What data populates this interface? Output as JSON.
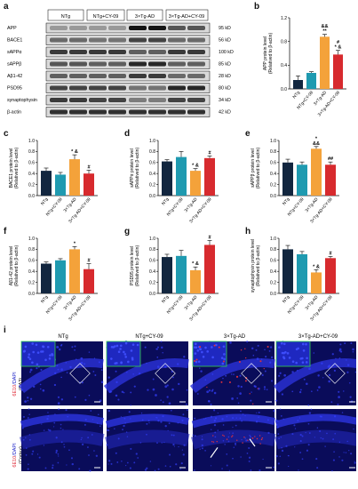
{
  "panels": {
    "a": "a",
    "b": "b",
    "c": "c",
    "d": "d",
    "e": "e",
    "f": "f",
    "g": "g",
    "h": "h",
    "i": "i"
  },
  "blot": {
    "groups": [
      "NTg",
      "NTg+CY-09",
      "3×Tg-AD",
      "3×Tg-AD+CY-09"
    ],
    "rows": [
      {
        "protein": "APP",
        "kd": "95 kD",
        "intensity": [
          0.25,
          0.25,
          0.95,
          0.6
        ]
      },
      {
        "protein": "BACE1",
        "kd": "56 kD",
        "intensity": [
          0.5,
          0.45,
          0.7,
          0.5
        ]
      },
      {
        "protein": "sAPPα",
        "kd": "100 kD",
        "intensity": [
          0.75,
          0.75,
          0.55,
          0.75
        ]
      },
      {
        "protein": "sAPPβ",
        "kd": "85 kD",
        "intensity": [
          0.6,
          0.55,
          0.85,
          0.55
        ]
      },
      {
        "protein": "Aβ1-42",
        "kd": "28 kD",
        "intensity": [
          0.55,
          0.55,
          0.75,
          0.5
        ]
      },
      {
        "protein": "PSD95",
        "kd": "80 kD",
        "intensity": [
          0.7,
          0.7,
          0.45,
          0.85
        ]
      },
      {
        "protein": "synaptophysin",
        "kd": "34 kD",
        "intensity": [
          0.75,
          0.7,
          0.4,
          0.7
        ]
      },
      {
        "protein": "β-actin",
        "kd": "42 kD",
        "intensity": [
          0.8,
          0.8,
          0.8,
          0.8
        ]
      }
    ]
  },
  "chart_data": [
    {
      "panel": "b",
      "type": "bar",
      "ylabel_line1": "APP protein level",
      "ylabel_line2": "(Relatived to β-actin)",
      "categories": [
        "NTg",
        "NTg+CY-09",
        "3×Tg-AD",
        "3×Tg-AD+CY-09"
      ],
      "values": [
        0.15,
        0.27,
        0.88,
        0.58
      ],
      "errors": [
        0.07,
        0.02,
        0.04,
        0.07
      ],
      "ylim": [
        0,
        1.2
      ],
      "yticks": [
        "0.0",
        "0.4",
        "0.8",
        "1.2"
      ],
      "ytick_values": [
        0,
        0.4,
        0.8,
        1.2
      ],
      "annotations": [
        "",
        "",
        "&&\n**",
        "#\n* &"
      ]
    },
    {
      "panel": "c",
      "type": "bar",
      "ylabel_line1": "BACE1 protein level",
      "ylabel_line2": "(Relatived to β-actin)",
      "categories": [
        "NTg",
        "NTg+CY-09",
        "3×Tg-AD",
        "3×Tg-AD+CY-09"
      ],
      "values": [
        0.45,
        0.38,
        0.66,
        0.4
      ],
      "errors": [
        0.05,
        0.04,
        0.08,
        0.06
      ],
      "ylim": [
        0,
        1.0
      ],
      "yticks": [
        "0.0",
        "0.2",
        "0.4",
        "0.6",
        "0.8",
        "1.0"
      ],
      "ytick_values": [
        0,
        0.2,
        0.4,
        0.6,
        0.8,
        1.0
      ],
      "annotations": [
        "",
        "",
        "* &",
        "#"
      ]
    },
    {
      "panel": "d",
      "type": "bar",
      "ylabel_line1": "sAPPα protein level",
      "ylabel_line2": "(Relatived to β-actin)",
      "categories": [
        "NTg",
        "NTg+CY-09",
        "3×Tg-AD",
        "3×Tg-AD+CY-09"
      ],
      "values": [
        0.62,
        0.7,
        0.45,
        0.68
      ],
      "errors": [
        0.03,
        0.1,
        0.04,
        0.04
      ],
      "ylim": [
        0,
        1.0
      ],
      "yticks": [
        "0.0",
        "0.2",
        "0.4",
        "0.6",
        "0.8",
        "1.0"
      ],
      "ytick_values": [
        0,
        0.2,
        0.4,
        0.6,
        0.8,
        1.0
      ],
      "annotations": [
        "",
        "",
        "* &",
        "#"
      ]
    },
    {
      "panel": "e",
      "type": "bar",
      "ylabel_line1": "sAPPβ protein level",
      "ylabel_line2": "(Relatived to β-actin)",
      "categories": [
        "NTg",
        "NTg+CY-09",
        "3×Tg-AD",
        "3×Tg-AD+CY-09"
      ],
      "values": [
        0.6,
        0.56,
        0.85,
        0.56
      ],
      "errors": [
        0.06,
        0.05,
        0.04,
        0.05
      ],
      "ylim": [
        0,
        1.0
      ],
      "yticks": [
        "0.0",
        "0.2",
        "0.4",
        "0.6",
        "0.8",
        "1.0"
      ],
      "ytick_values": [
        0,
        0.2,
        0.4,
        0.6,
        0.8,
        1.0
      ],
      "annotations": [
        "",
        "",
        "*\n&&",
        "##"
      ]
    },
    {
      "panel": "f",
      "type": "bar",
      "ylabel_line1": "Aβ1-42 protein level",
      "ylabel_line2": "(Relatived to β-actin)",
      "categories": [
        "NTg",
        "NTg+CY-09",
        "3×Tg-AD",
        "3×Tg-AD+CY-09"
      ],
      "values": [
        0.54,
        0.6,
        0.8,
        0.44
      ],
      "errors": [
        0.03,
        0.03,
        0.05,
        0.1
      ],
      "ylim": [
        0,
        1.0
      ],
      "yticks": [
        "0.0",
        "0.2",
        "0.4",
        "0.6",
        "0.8",
        "1.0"
      ],
      "ytick_values": [
        0,
        0.2,
        0.4,
        0.6,
        0.8,
        1.0
      ],
      "annotations": [
        "",
        "",
        "*",
        "#"
      ]
    },
    {
      "panel": "g",
      "type": "bar",
      "ylabel_line1": "PSD95 protein level",
      "ylabel_line2": "(Relatived to β-actin)",
      "categories": [
        "NTg",
        "NTg+CY-09",
        "3×Tg-AD",
        "3×Tg-AD+CY-09"
      ],
      "values": [
        0.66,
        0.68,
        0.42,
        0.88
      ],
      "errors": [
        0.05,
        0.1,
        0.06,
        0.08
      ],
      "ylim": [
        0,
        1.0
      ],
      "yticks": [
        "0.0",
        "0.2",
        "0.4",
        "0.6",
        "0.8",
        "1.0"
      ],
      "ytick_values": [
        0,
        0.2,
        0.4,
        0.6,
        0.8,
        1.0
      ],
      "annotations": [
        "",
        "",
        "* &",
        "#"
      ]
    },
    {
      "panel": "h",
      "type": "bar",
      "ylabel_line1": "synaptophysin protein level",
      "ylabel_line2": "(Relatived to β-actin)",
      "categories": [
        "NTg",
        "NTg+CY-09",
        "3×Tg-AD",
        "3×Tg-AD+CY-09"
      ],
      "values": [
        0.8,
        0.71,
        0.38,
        0.64
      ],
      "errors": [
        0.07,
        0.05,
        0.05,
        0.03
      ],
      "ylim": [
        0,
        1.0
      ],
      "yticks": [
        "0.0",
        "0.2",
        "0.4",
        "0.6",
        "0.8",
        "1.0"
      ],
      "ytick_values": [
        0,
        0.2,
        0.4,
        0.6,
        0.8,
        1.0
      ],
      "annotations": [
        "",
        "",
        "* &",
        "#"
      ]
    }
  ],
  "bar_colors": [
    "#12263f",
    "#1f9ab0",
    "#f4a23a",
    "#d72a2e"
  ],
  "micro": {
    "columns": [
      "NTg",
      "NTg+CY-09",
      "3×Tg-AD",
      "3×Tg-AD+CY-09"
    ],
    "row_labels": [
      {
        "marker": "6E10",
        "stain": "/DAPI",
        "region": "(CA3)"
      },
      {
        "marker": "6E10",
        "stain": "/DAPI",
        "region": "(Cortex)"
      }
    ],
    "colors": {
      "dapi": "#1a20c8",
      "dark": "#0a0c5a",
      "marker": "#e0303c",
      "inset_border": "#35d24a"
    }
  }
}
